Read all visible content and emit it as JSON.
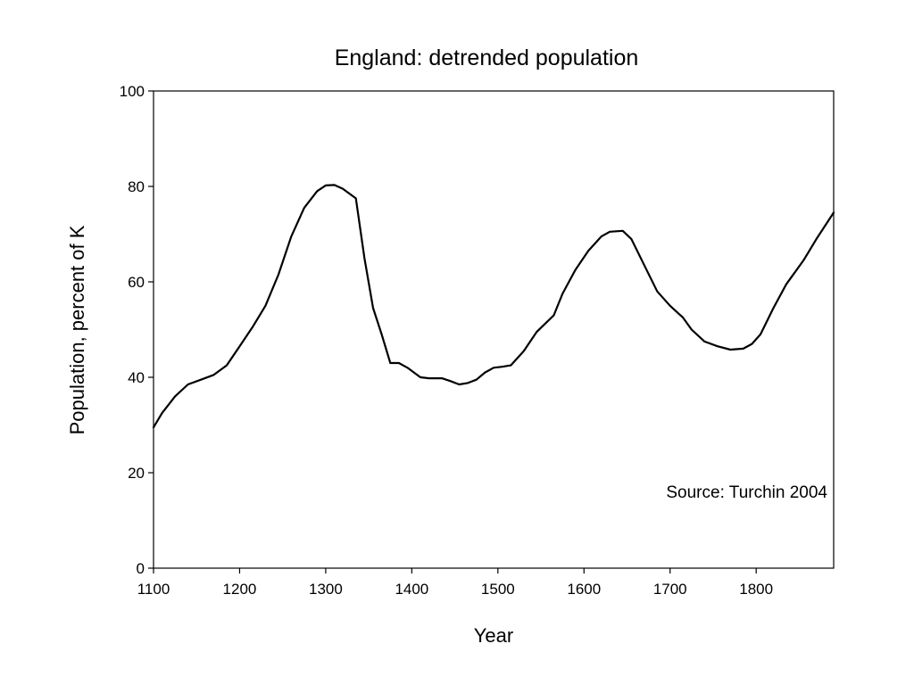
{
  "chart_data": {
    "type": "line",
    "title": "England: detrended population",
    "xlabel": "Year",
    "ylabel": "Population, percent of K",
    "xlim": [
      1100,
      1890
    ],
    "ylim": [
      0,
      100
    ],
    "xticks": [
      1100,
      1200,
      1300,
      1400,
      1500,
      1600,
      1700,
      1800
    ],
    "yticks": [
      0,
      20,
      40,
      60,
      80,
      100
    ],
    "grid": false,
    "legend": "none",
    "annotation": "Source: Turchin 2004",
    "line_color": "#000000",
    "series": [
      {
        "x": [
          1100,
          1110,
          1125,
          1140,
          1155,
          1170,
          1185,
          1200,
          1215,
          1230,
          1245,
          1260,
          1275,
          1290,
          1300,
          1310,
          1320,
          1335,
          1345,
          1355,
          1365,
          1375,
          1385,
          1395,
          1410,
          1420,
          1435,
          1445,
          1455,
          1465,
          1475,
          1485,
          1495,
          1505,
          1515,
          1530,
          1545,
          1565,
          1575,
          1590,
          1605,
          1620,
          1630,
          1645,
          1655,
          1670,
          1685,
          1700,
          1715,
          1725,
          1740,
          1755,
          1770,
          1785,
          1795,
          1805,
          1820,
          1835,
          1855,
          1870,
          1890
        ],
        "y": [
          29.5,
          32.5,
          36,
          38.5,
          39.5,
          40.5,
          42.5,
          46.5,
          50.5,
          55,
          61.5,
          69.5,
          75.5,
          79,
          80.2,
          80.3,
          79.5,
          77.5,
          65,
          54.5,
          49,
          43,
          43,
          42,
          40,
          39.8,
          39.8,
          39.2,
          38.5,
          38.8,
          39.5,
          41,
          42,
          42.2,
          42.5,
          45.5,
          49.5,
          53,
          57.5,
          62.5,
          66.5,
          69.5,
          70.5,
          70.7,
          69,
          63.5,
          58,
          55,
          52.5,
          50,
          47.5,
          46.5,
          45.8,
          46,
          47,
          49,
          54.5,
          59.5,
          64.5,
          69,
          74.5
        ]
      }
    ]
  }
}
